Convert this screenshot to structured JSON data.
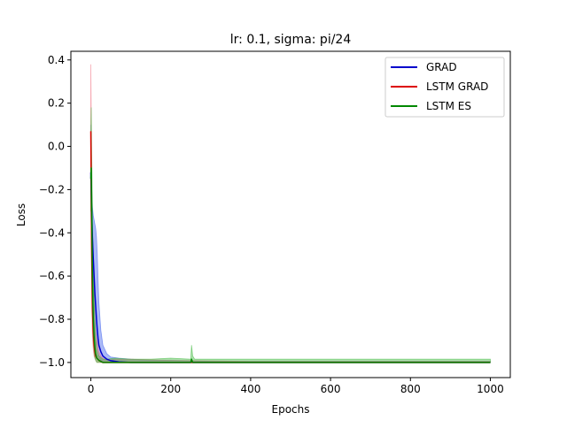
{
  "chart_data": {
    "type": "line",
    "title": "lr: 0.1, sigma: pi/24",
    "xlabel": "Epochs",
    "ylabel": "Loss",
    "xlim": [
      -50,
      1050
    ],
    "ylim": [
      -1.07,
      0.44
    ],
    "xticks": [
      0,
      200,
      400,
      600,
      800,
      1000
    ],
    "yticks": [
      0.4,
      0.2,
      0.0,
      -0.2,
      -0.4,
      -0.6,
      -0.8,
      -1.0
    ],
    "xtick_labels": [
      "0",
      "200",
      "400",
      "600",
      "800",
      "1000"
    ],
    "ytick_labels": [
      "0.4",
      "0.2",
      "0.0",
      "−0.2",
      "−0.4",
      "−0.6",
      "−0.8",
      "−1.0"
    ],
    "grid": false,
    "legend_position": "top-right",
    "series": [
      {
        "name": "GRAD",
        "color": "#0000cc",
        "band_color": "#4466ee",
        "x": [
          0,
          2,
          4,
          6,
          8,
          10,
          12,
          14,
          16,
          18,
          20,
          25,
          30,
          40,
          50,
          70,
          100,
          150,
          200,
          300,
          400,
          600,
          800,
          1000
        ],
        "y": [
          -0.12,
          -0.3,
          -0.42,
          -0.52,
          -0.6,
          -0.68,
          -0.74,
          -0.8,
          -0.85,
          -0.89,
          -0.92,
          -0.95,
          -0.97,
          -0.985,
          -0.992,
          -0.997,
          -1.0,
          -1.0,
          -1.0,
          -1.0,
          -1.0,
          -1.0,
          -1.0,
          -1.0
        ],
        "upper": [
          0.1,
          -0.18,
          -0.28,
          -0.32,
          -0.34,
          -0.36,
          -0.38,
          -0.42,
          -0.5,
          -0.62,
          -0.72,
          -0.85,
          -0.92,
          -0.96,
          -0.975,
          -0.98,
          -0.985,
          -0.99,
          -0.99,
          -0.995,
          -0.995,
          -0.995,
          -0.995,
          -0.995
        ],
        "lower": [
          -0.3,
          -0.45,
          -0.6,
          -0.72,
          -0.8,
          -0.86,
          -0.9,
          -0.93,
          -0.95,
          -0.97,
          -0.98,
          -0.99,
          -0.995,
          -1.0,
          -1.0,
          -1.0,
          -1.0,
          -1.0,
          -1.0,
          -1.0,
          -1.0,
          -1.0,
          -1.0,
          -1.0
        ]
      },
      {
        "name": "LSTM GRAD",
        "color": "#dd0000",
        "band_color": "#f07080",
        "x": [
          0,
          1,
          2,
          3,
          4,
          6,
          8,
          10,
          12,
          15,
          20,
          25,
          30,
          40,
          60,
          100,
          200,
          400,
          600,
          800,
          1000
        ],
        "y": [
          0.07,
          -0.2,
          -0.45,
          -0.62,
          -0.75,
          -0.86,
          -0.92,
          -0.95,
          -0.97,
          -0.98,
          -0.99,
          -0.995,
          -1.0,
          -1.0,
          -1.0,
          -1.0,
          -1.0,
          -1.0,
          -1.0,
          -1.0,
          -1.0
        ],
        "upper": [
          0.38,
          0.15,
          -0.1,
          -0.3,
          -0.45,
          -0.6,
          -0.72,
          -0.8,
          -0.86,
          -0.9,
          -0.95,
          -0.97,
          -0.98,
          -0.99,
          -0.985,
          -0.985,
          -0.99,
          -0.995,
          -0.995,
          -0.995,
          -0.995
        ],
        "lower": [
          -0.15,
          -0.4,
          -0.65,
          -0.8,
          -0.88,
          -0.94,
          -0.97,
          -0.98,
          -0.99,
          -1.0,
          -1.0,
          -1.0,
          -1.0,
          -1.0,
          -1.0,
          -1.0,
          -1.0,
          -1.0,
          -1.0,
          -1.0,
          -1.0
        ]
      },
      {
        "name": "LSTM ES",
        "color": "#008800",
        "band_color": "#44bb44",
        "x": [
          0,
          1,
          2,
          3,
          4,
          5,
          6,
          8,
          10,
          12,
          15,
          20,
          30,
          40,
          60,
          100,
          150,
          200,
          250,
          252,
          255,
          260,
          300,
          400,
          600,
          800,
          1000
        ],
        "y": [
          -0.15,
          -0.1,
          -0.25,
          -0.45,
          -0.6,
          -0.72,
          -0.8,
          -0.88,
          -0.93,
          -0.96,
          -0.98,
          -0.99,
          -1.0,
          -1.0,
          -1.0,
          -1.0,
          -1.0,
          -1.0,
          -1.0,
          -0.985,
          -1.0,
          -1.0,
          -1.0,
          -1.0,
          -1.0,
          -1.0,
          -1.0
        ],
        "upper": [
          0.05,
          0.18,
          0.0,
          -0.15,
          -0.3,
          -0.45,
          -0.55,
          -0.7,
          -0.8,
          -0.88,
          -0.94,
          -0.97,
          -0.985,
          -0.985,
          -0.98,
          -0.985,
          -0.985,
          -0.98,
          -0.985,
          -0.92,
          -0.97,
          -0.985,
          -0.985,
          -0.985,
          -0.985,
          -0.985,
          -0.985
        ],
        "lower": [
          -0.3,
          -0.3,
          -0.45,
          -0.65,
          -0.78,
          -0.86,
          -0.9,
          -0.95,
          -0.98,
          -0.99,
          -1.0,
          -1.0,
          -1.0,
          -1.0,
          -1.0,
          -1.0,
          -1.0,
          -1.0,
          -1.0,
          -1.0,
          -1.0,
          -1.0,
          -1.0,
          -1.0,
          -1.0,
          -1.0,
          -1.0
        ]
      }
    ]
  }
}
